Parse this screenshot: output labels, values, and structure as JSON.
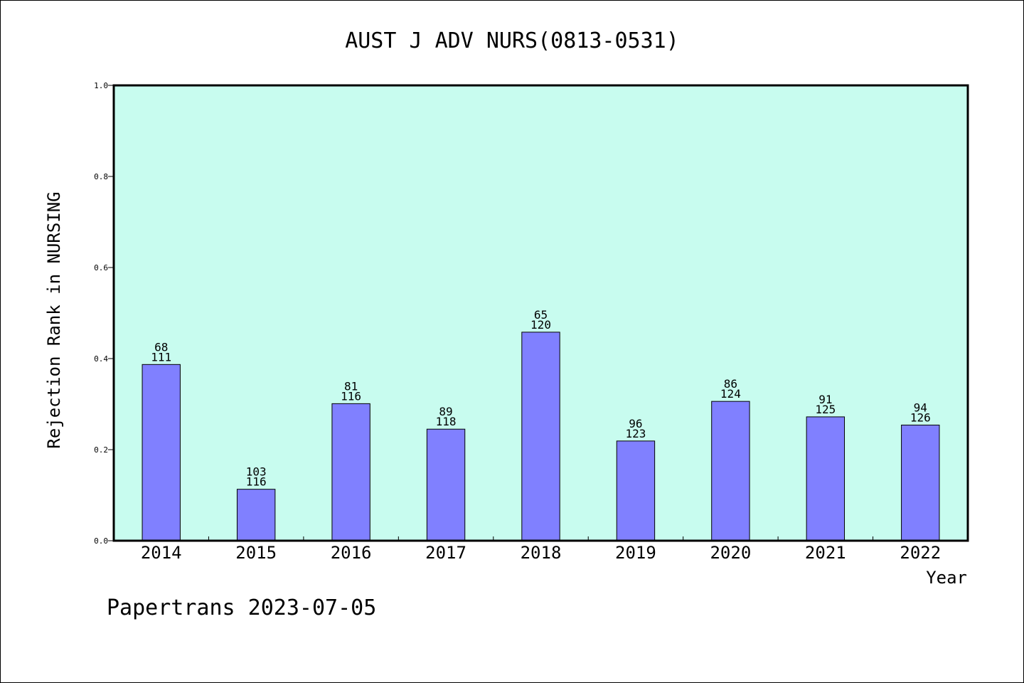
{
  "chart_data": {
    "type": "bar",
    "title": "AUST J ADV NURS(0813-0531)",
    "xlabel": "Year",
    "ylabel": "Rejection Rank in NURSING",
    "ylim": [
      0,
      1.0
    ],
    "yticks": [
      "0.0",
      "0.2",
      "0.4",
      "0.6",
      "0.8",
      "1.0"
    ],
    "categories": [
      "2014",
      "2015",
      "2016",
      "2017",
      "2018",
      "2019",
      "2020",
      "2021",
      "2022"
    ],
    "values": [
      0.387,
      0.113,
      0.301,
      0.245,
      0.458,
      0.219,
      0.306,
      0.272,
      0.254
    ],
    "bar_labels_top": [
      "68",
      "103",
      "81",
      "89",
      "65",
      "96",
      "86",
      "91",
      "94"
    ],
    "bar_labels_bottom": [
      "111",
      "116",
      "116",
      "118",
      "120",
      "123",
      "124",
      "125",
      "126"
    ],
    "grid": false,
    "legend": "none",
    "colors": {
      "plot_background": "#c8fcef",
      "bar_fill": "#8080ff",
      "bar_edge": "#000000"
    }
  },
  "footer": {
    "watermark": "Papertrans 2023-07-05"
  }
}
